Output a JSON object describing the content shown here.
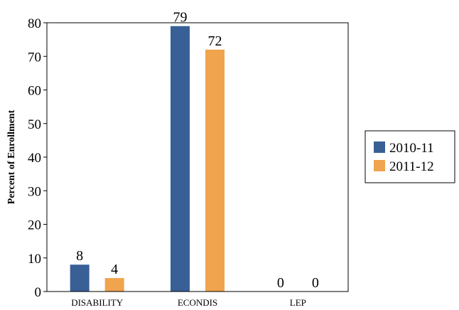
{
  "chart_data": {
    "type": "bar",
    "title": "",
    "xlabel": "",
    "ylabel": "Percent of Enrollment",
    "ylim": [
      0,
      80
    ],
    "yticks": [
      0,
      10,
      20,
      30,
      40,
      50,
      60,
      70,
      80
    ],
    "grid": false,
    "legend_position": "right",
    "categories": [
      "DISABILITY",
      "ECONDIS",
      "LEP"
    ],
    "series": [
      {
        "name": "2010-11",
        "color": "#386096",
        "values": [
          8,
          79,
          0
        ]
      },
      {
        "name": "2011-12",
        "color": "#F0A44D",
        "values": [
          4,
          72,
          0
        ]
      }
    ]
  }
}
